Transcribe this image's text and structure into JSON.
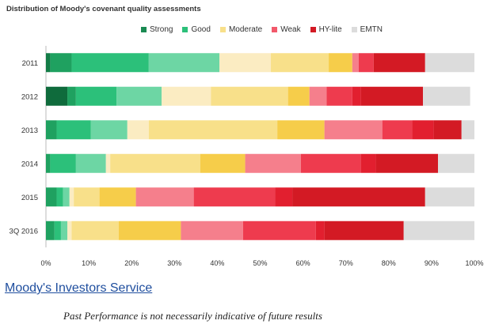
{
  "chart_data": {
    "type": "bar",
    "orientation": "horizontal",
    "stacked": true,
    "title": "Distribution of Moody's covenant quality assessments",
    "categories": [
      "2011",
      "2012",
      "2013",
      "2014",
      "2015",
      "3Q 2016"
    ],
    "x_ticks": [
      "0%",
      "10%",
      "20%",
      "30%",
      "40%",
      "50%",
      "60%",
      "70%",
      "80%",
      "90%",
      "100%"
    ],
    "xlim": [
      0,
      100
    ],
    "legend_position": "top",
    "legend": [
      {
        "label": "Strong",
        "color": "#1a8a52"
      },
      {
        "label": "Good",
        "color": "#2cc07a"
      },
      {
        "label": "Moderate",
        "color": "#f8e08a"
      },
      {
        "label": "Weak",
        "color": "#f2596b"
      },
      {
        "label": "HY-lite",
        "color": "#d31a24"
      },
      {
        "label": "EMTN",
        "color": "#dcdcdc"
      }
    ],
    "segments": [
      [
        {
          "value": 1,
          "color": "#137c46"
        },
        {
          "value": 5,
          "color": "#1fa160"
        },
        {
          "value": 18,
          "color": "#2cc07a"
        },
        {
          "value": 16.5,
          "color": "#6dd6a4"
        },
        {
          "value": 12,
          "color": "#fbecc2"
        },
        {
          "value": 13.5,
          "color": "#f8e08a"
        },
        {
          "value": 5.5,
          "color": "#f6cd4a"
        },
        {
          "value": 1.5,
          "color": "#f57f8c"
        },
        {
          "value": 3.5,
          "color": "#ee3b4e"
        },
        {
          "value": 12,
          "color": "#d31a24"
        },
        {
          "value": 11.5,
          "color": "#dcdcdc"
        }
      ],
      [
        {
          "value": 5,
          "color": "#0f6b3c"
        },
        {
          "value": 2,
          "color": "#1fa160"
        },
        {
          "value": 9.5,
          "color": "#2cc07a"
        },
        {
          "value": 10.5,
          "color": "#6dd6a4"
        },
        {
          "value": 11.5,
          "color": "#fbecc2"
        },
        {
          "value": 18,
          "color": "#f8e08a"
        },
        {
          "value": 5,
          "color": "#f6cd4a"
        },
        {
          "value": 4,
          "color": "#f57f8c"
        },
        {
          "value": 6,
          "color": "#ee3b4e"
        },
        {
          "value": 2,
          "color": "#e21f2f"
        },
        {
          "value": 14.5,
          "color": "#d31a24"
        },
        {
          "value": 11,
          "color": "#dcdcdc"
        }
      ],
      [
        {
          "value": 2.5,
          "color": "#1fa160"
        },
        {
          "value": 8,
          "color": "#2cc07a"
        },
        {
          "value": 8.5,
          "color": "#6dd6a4"
        },
        {
          "value": 5,
          "color": "#fbecc2"
        },
        {
          "value": 30,
          "color": "#f8e08a"
        },
        {
          "value": 11,
          "color": "#f6cd4a"
        },
        {
          "value": 13.5,
          "color": "#f57f8c"
        },
        {
          "value": 7,
          "color": "#ee3b4e"
        },
        {
          "value": 5,
          "color": "#e21f2f"
        },
        {
          "value": 6.5,
          "color": "#d31a24"
        },
        {
          "value": 3,
          "color": "#dcdcdc"
        }
      ],
      [
        {
          "value": 1,
          "color": "#1fa160"
        },
        {
          "value": 6,
          "color": "#2cc07a"
        },
        {
          "value": 7,
          "color": "#6dd6a4"
        },
        {
          "value": 1,
          "color": "#fbecc2"
        },
        {
          "value": 21,
          "color": "#f8e08a"
        },
        {
          "value": 10.5,
          "color": "#f6cd4a"
        },
        {
          "value": 13,
          "color": "#f57f8c"
        },
        {
          "value": 14,
          "color": "#ee3b4e"
        },
        {
          "value": 3.5,
          "color": "#e21f2f"
        },
        {
          "value": 14.5,
          "color": "#d31a24"
        },
        {
          "value": 8.5,
          "color": "#dcdcdc"
        }
      ],
      [
        {
          "value": 2.5,
          "color": "#1fa160"
        },
        {
          "value": 1.5,
          "color": "#2cc07a"
        },
        {
          "value": 1.5,
          "color": "#6dd6a4"
        },
        {
          "value": 1,
          "color": "#fbecc2"
        },
        {
          "value": 6,
          "color": "#f8e08a"
        },
        {
          "value": 8.5,
          "color": "#f6cd4a"
        },
        {
          "value": 13.5,
          "color": "#f57f8c"
        },
        {
          "value": 19,
          "color": "#ee3b4e"
        },
        {
          "value": 4,
          "color": "#e21f2f"
        },
        {
          "value": 31,
          "color": "#d31a24"
        },
        {
          "value": 11.5,
          "color": "#dcdcdc"
        }
      ],
      [
        {
          "value": 2,
          "color": "#1fa160"
        },
        {
          "value": 1.5,
          "color": "#2cc07a"
        },
        {
          "value": 1.5,
          "color": "#6dd6a4"
        },
        {
          "value": 1,
          "color": "#fbecc2"
        },
        {
          "value": 11,
          "color": "#f8e08a"
        },
        {
          "value": 14.5,
          "color": "#f6cd4a"
        },
        {
          "value": 14.5,
          "color": "#f57f8c"
        },
        {
          "value": 17,
          "color": "#ee3b4e"
        },
        {
          "value": 2,
          "color": "#e21f2f"
        },
        {
          "value": 18.5,
          "color": "#d31a24"
        },
        {
          "value": 16.5,
          "color": "#dcdcdc"
        }
      ]
    ]
  },
  "footer": {
    "source": "Moody's Investors Service",
    "disclaimer": "Past Performance is not necessarily indicative of future results"
  }
}
